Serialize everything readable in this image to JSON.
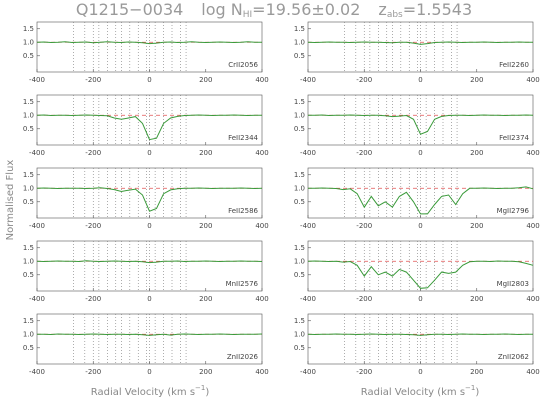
{
  "title": {
    "object": "Q1215−0034",
    "nhi_pre": "log N",
    "nhi_sub": "HI",
    "nhi_post": "=19.56±0.02",
    "z_pre": "z",
    "z_sub": "abs",
    "z_post": "=1.5543"
  },
  "y_label": "Normalised Flux",
  "x_label": {
    "pre": "Radial Velocity (km s",
    "sup": "−1",
    "post": ")"
  },
  "components": [
    -270,
    -230,
    -200,
    -180,
    -150,
    -120,
    -100,
    -70,
    -40,
    -10,
    0,
    20,
    50,
    80,
    110,
    130
  ],
  "chart_data": [
    {
      "type": "line",
      "label": "CrII2056",
      "color": "#3a9a3a",
      "continuum": 1,
      "continuum_color": "#e05050",
      "xlim": [
        -400,
        400
      ],
      "xticks": [
        -400,
        -200,
        0,
        200,
        400
      ],
      "ylim": [
        -0.1,
        1.75
      ],
      "yticks": [
        {
          "value": 0.5,
          "label": "0.5"
        },
        {
          "value": 1,
          "label": "1.0"
        },
        {
          "value": 1.5,
          "label": "1.5"
        }
      ],
      "x": [
        -400,
        -375,
        -350,
        -325,
        -300,
        -275,
        -250,
        -225,
        -200,
        -175,
        -150,
        -125,
        -100,
        -75,
        -50,
        -25,
        0,
        25,
        50,
        75,
        100,
        125,
        150,
        175,
        200,
        225,
        250,
        275,
        300,
        325,
        350,
        375,
        400
      ],
      "values": [
        1,
        1.01,
        0.99,
        1,
        1.02,
        0.99,
        1,
        1.01,
        0.98,
        1,
        1.02,
        1,
        0.99,
        1.01,
        1,
        0.98,
        0.95,
        0.97,
        1,
        1.01,
        0.99,
        1,
        1.02,
        1,
        0.99,
        1,
        1.01,
        1,
        0.99,
        1,
        1.02,
        1,
        1
      ]
    },
    {
      "type": "line",
      "label": "FeII2344",
      "color": "#3a9a3a",
      "continuum": 1,
      "continuum_color": "#e05050",
      "xlim": [
        -400,
        400
      ],
      "xticks": [
        -400,
        -200,
        0,
        200,
        400
      ],
      "ylim": [
        -0.1,
        1.75
      ],
      "yticks": [
        {
          "value": 0.5,
          "label": "0.5"
        },
        {
          "value": 1,
          "label": "1.0"
        },
        {
          "value": 1.5,
          "label": "1.5"
        }
      ],
      "x": [
        -400,
        -375,
        -350,
        -325,
        -300,
        -275,
        -250,
        -225,
        -200,
        -175,
        -150,
        -125,
        -100,
        -75,
        -50,
        -25,
        0,
        25,
        50,
        75,
        100,
        125,
        150,
        175,
        200,
        225,
        250,
        275,
        300,
        325,
        350,
        375,
        400
      ],
      "values": [
        1,
        1.01,
        0.99,
        1,
        1,
        0.99,
        1,
        1.01,
        1,
        0.99,
        0.98,
        0.9,
        0.85,
        0.9,
        0.95,
        0.7,
        0.1,
        0.15,
        0.7,
        0.9,
        0.96,
        0.99,
        1,
        1.01,
        1,
        0.99,
        1,
        1,
        1.01,
        1,
        0.99,
        1,
        1
      ]
    },
    {
      "type": "line",
      "label": "FeII2586",
      "color": "#3a9a3a",
      "continuum": 1,
      "continuum_color": "#e05050",
      "xlim": [
        -400,
        400
      ],
      "xticks": [
        -400,
        -200,
        0,
        200,
        400
      ],
      "ylim": [
        -0.1,
        1.75
      ],
      "yticks": [
        {
          "value": 0.5,
          "label": "0.5"
        },
        {
          "value": 1,
          "label": "1.0"
        },
        {
          "value": 1.5,
          "label": "1.5"
        }
      ],
      "x": [
        -400,
        -375,
        -350,
        -325,
        -300,
        -275,
        -250,
        -225,
        -200,
        -175,
        -150,
        -125,
        -100,
        -75,
        -50,
        -25,
        0,
        25,
        50,
        75,
        100,
        125,
        150,
        175,
        200,
        225,
        250,
        275,
        300,
        325,
        350,
        375,
        400
      ],
      "values": [
        1,
        1.01,
        1,
        0.99,
        1,
        1,
        1,
        0.99,
        1,
        1.02,
        0.99,
        0.95,
        0.88,
        0.93,
        0.97,
        0.75,
        0.15,
        0.25,
        0.8,
        0.94,
        0.98,
        1,
        1,
        1.01,
        1,
        0.99,
        1,
        1,
        1,
        1.01,
        1,
        0.99,
        1
      ]
    },
    {
      "type": "line",
      "label": "MnII2576",
      "color": "#3a9a3a",
      "continuum": 1,
      "continuum_color": "#e05050",
      "xlim": [
        -400,
        400
      ],
      "xticks": [
        -400,
        -200,
        0,
        200,
        400
      ],
      "ylim": [
        -0.1,
        1.75
      ],
      "yticks": [
        {
          "value": 0.5,
          "label": "0.5"
        },
        {
          "value": 1,
          "label": "1.0"
        },
        {
          "value": 1.5,
          "label": "1.5"
        }
      ],
      "x": [
        -400,
        -375,
        -350,
        -325,
        -300,
        -275,
        -250,
        -225,
        -200,
        -175,
        -150,
        -125,
        -100,
        -75,
        -50,
        -25,
        0,
        25,
        50,
        75,
        100,
        125,
        150,
        175,
        200,
        225,
        250,
        275,
        300,
        325,
        350,
        375,
        400
      ],
      "values": [
        1,
        0.99,
        1,
        1.01,
        1,
        1,
        0.99,
        1.02,
        1,
        0.99,
        1,
        1.01,
        1,
        0.99,
        1,
        0.98,
        0.95,
        0.97,
        1,
        1,
        1.01,
        0.99,
        1,
        1,
        1.01,
        1,
        0.99,
        1,
        1,
        1.01,
        1,
        1,
        0.99
      ]
    },
    {
      "type": "line",
      "label": "ZnII2026",
      "color": "#3a9a3a",
      "continuum": 1,
      "continuum_color": "#e05050",
      "xlim": [
        -400,
        400
      ],
      "xticks": [
        -400,
        -200,
        0,
        200,
        400
      ],
      "ylim": [
        -0.1,
        1.75
      ],
      "yticks": [
        {
          "value": 0.5,
          "label": "0.5"
        },
        {
          "value": 1,
          "label": "1.0"
        },
        {
          "value": 1.5,
          "label": "1.5"
        }
      ],
      "x": [
        -400,
        -375,
        -350,
        -325,
        -300,
        -275,
        -250,
        -225,
        -200,
        -175,
        -150,
        -125,
        -100,
        -75,
        -50,
        -25,
        0,
        25,
        50,
        75,
        100,
        125,
        150,
        175,
        200,
        225,
        250,
        275,
        300,
        325,
        350,
        375,
        400
      ],
      "values": [
        1,
        1,
        0.99,
        1.01,
        1,
        1,
        0.99,
        1,
        1.01,
        1,
        0.99,
        1,
        1,
        0.99,
        1,
        0.98,
        0.96,
        0.98,
        1,
        0.97,
        1,
        1.01,
        1,
        0.99,
        1,
        1,
        1.01,
        1,
        0.99,
        1,
        1,
        1,
        1.01
      ]
    },
    {
      "type": "line",
      "label": "FeII2260",
      "color": "#3a9a3a",
      "continuum": 1,
      "continuum_color": "#e05050",
      "xlim": [
        -400,
        400
      ],
      "xticks": [
        -400,
        -200,
        0,
        200,
        400
      ],
      "ylim": [
        -0.1,
        1.75
      ],
      "yticks": [
        {
          "value": 0.5,
          "label": "0.5"
        },
        {
          "value": 1,
          "label": "1.0"
        },
        {
          "value": 1.5,
          "label": "1.5"
        }
      ],
      "x": [
        -400,
        -375,
        -350,
        -325,
        -300,
        -275,
        -250,
        -225,
        -200,
        -175,
        -150,
        -125,
        -100,
        -75,
        -50,
        -25,
        0,
        25,
        50,
        75,
        100,
        125,
        150,
        175,
        200,
        225,
        250,
        275,
        300,
        325,
        350,
        375,
        400
      ],
      "values": [
        1,
        0.99,
        1,
        1.01,
        1,
        1,
        0.99,
        1,
        1.01,
        1,
        1,
        0.99,
        0.98,
        1,
        1,
        0.97,
        0.92,
        0.95,
        0.99,
        1,
        1.01,
        1,
        0.99,
        1,
        1,
        1.01,
        1,
        0.99,
        1,
        1,
        1.01,
        1,
        1
      ]
    },
    {
      "type": "line",
      "label": "FeII2374",
      "color": "#3a9a3a",
      "continuum": 1,
      "continuum_color": "#e05050",
      "xlim": [
        -400,
        400
      ],
      "xticks": [
        -400,
        -200,
        0,
        200,
        400
      ],
      "ylim": [
        -0.1,
        1.75
      ],
      "yticks": [
        {
          "value": 0.5,
          "label": "0.5"
        },
        {
          "value": 1,
          "label": "1.0"
        },
        {
          "value": 1.5,
          "label": "1.5"
        }
      ],
      "x": [
        -400,
        -375,
        -350,
        -325,
        -300,
        -275,
        -250,
        -225,
        -200,
        -175,
        -150,
        -125,
        -100,
        -75,
        -50,
        -25,
        0,
        25,
        50,
        75,
        100,
        125,
        150,
        175,
        200,
        225,
        250,
        275,
        300,
        325,
        350,
        375,
        400
      ],
      "values": [
        1,
        1,
        1.01,
        0.99,
        1,
        1,
        1.01,
        1,
        0.99,
        1,
        1,
        0.98,
        0.95,
        0.97,
        0.99,
        0.85,
        0.3,
        0.4,
        0.85,
        0.96,
        0.99,
        1,
        1,
        0.99,
        1,
        1.01,
        1,
        1,
        0.99,
        1,
        1,
        1.01,
        1
      ]
    },
    {
      "type": "line",
      "label": "MgII2796",
      "color": "#3a9a3a",
      "continuum": 1,
      "continuum_color": "#e05050",
      "xlim": [
        -400,
        400
      ],
      "xticks": [
        -400,
        -200,
        0,
        200,
        400
      ],
      "ylim": [
        -0.1,
        1.75
      ],
      "yticks": [
        {
          "value": 0.5,
          "label": "0.5"
        },
        {
          "value": 1,
          "label": "1.0"
        },
        {
          "value": 1.5,
          "label": "1.5"
        }
      ],
      "x": [
        -400,
        -375,
        -350,
        -325,
        -300,
        -275,
        -250,
        -225,
        -200,
        -175,
        -150,
        -125,
        -100,
        -75,
        -50,
        -25,
        0,
        25,
        50,
        75,
        100,
        125,
        150,
        175,
        200,
        225,
        250,
        275,
        300,
        325,
        350,
        375,
        400
      ],
      "values": [
        1,
        1,
        1.01,
        1,
        0.99,
        0.95,
        0.98,
        0.8,
        0.3,
        0.7,
        0.35,
        0.5,
        0.3,
        0.7,
        0.85,
        0.5,
        0.05,
        0.05,
        0.4,
        0.7,
        0.75,
        0.4,
        0.8,
        1,
        1,
        1.01,
        1,
        0.99,
        1,
        1,
        1.02,
        1.05,
        0.98
      ]
    },
    {
      "type": "line",
      "label": "MgII2803",
      "color": "#3a9a3a",
      "continuum": 1,
      "continuum_color": "#e05050",
      "xlim": [
        -400,
        400
      ],
      "xticks": [
        -400,
        -200,
        0,
        200,
        400
      ],
      "ylim": [
        -0.1,
        1.75
      ],
      "yticks": [
        {
          "value": 0.5,
          "label": "0.5"
        },
        {
          "value": 1,
          "label": "1.0"
        },
        {
          "value": 1.5,
          "label": "1.5"
        }
      ],
      "x": [
        -400,
        -375,
        -350,
        -325,
        -300,
        -275,
        -250,
        -225,
        -200,
        -175,
        -150,
        -125,
        -100,
        -75,
        -50,
        -25,
        0,
        25,
        50,
        75,
        100,
        125,
        150,
        175,
        200,
        225,
        250,
        275,
        300,
        325,
        350,
        375,
        400
      ],
      "values": [
        1,
        1.01,
        1,
        0.99,
        1,
        0.97,
        0.99,
        0.85,
        0.45,
        0.8,
        0.5,
        0.6,
        0.45,
        0.7,
        0.6,
        0.3,
        0,
        0.02,
        0.3,
        0.6,
        0.55,
        0.6,
        0.85,
        0.98,
        1,
        1,
        0.99,
        1.01,
        1,
        1,
        0.98,
        0.92,
        0.85
      ]
    },
    {
      "type": "line",
      "label": "ZnII2062",
      "color": "#3a9a3a",
      "continuum": 1,
      "continuum_color": "#e05050",
      "xlim": [
        -400,
        400
      ],
      "xticks": [
        -400,
        -200,
        0,
        200,
        400
      ],
      "ylim": [
        -0.1,
        1.75
      ],
      "yticks": [
        {
          "value": 0.5,
          "label": "0.5"
        },
        {
          "value": 1,
          "label": "1.0"
        },
        {
          "value": 1.5,
          "label": "1.5"
        }
      ],
      "x": [
        -400,
        -375,
        -350,
        -325,
        -300,
        -275,
        -250,
        -225,
        -200,
        -175,
        -150,
        -125,
        -100,
        -75,
        -50,
        -25,
        0,
        25,
        50,
        75,
        100,
        125,
        150,
        175,
        200,
        225,
        250,
        275,
        300,
        325,
        350,
        375,
        400
      ],
      "values": [
        1,
        0.99,
        1,
        1,
        1.01,
        1,
        1,
        0.99,
        1,
        1.01,
        1,
        0.99,
        1,
        1,
        0.99,
        0.98,
        0.96,
        0.98,
        1,
        1,
        0.99,
        1,
        1.01,
        1,
        1,
        0.99,
        1,
        1,
        1.01,
        1,
        0.99,
        1,
        1
      ]
    }
  ]
}
